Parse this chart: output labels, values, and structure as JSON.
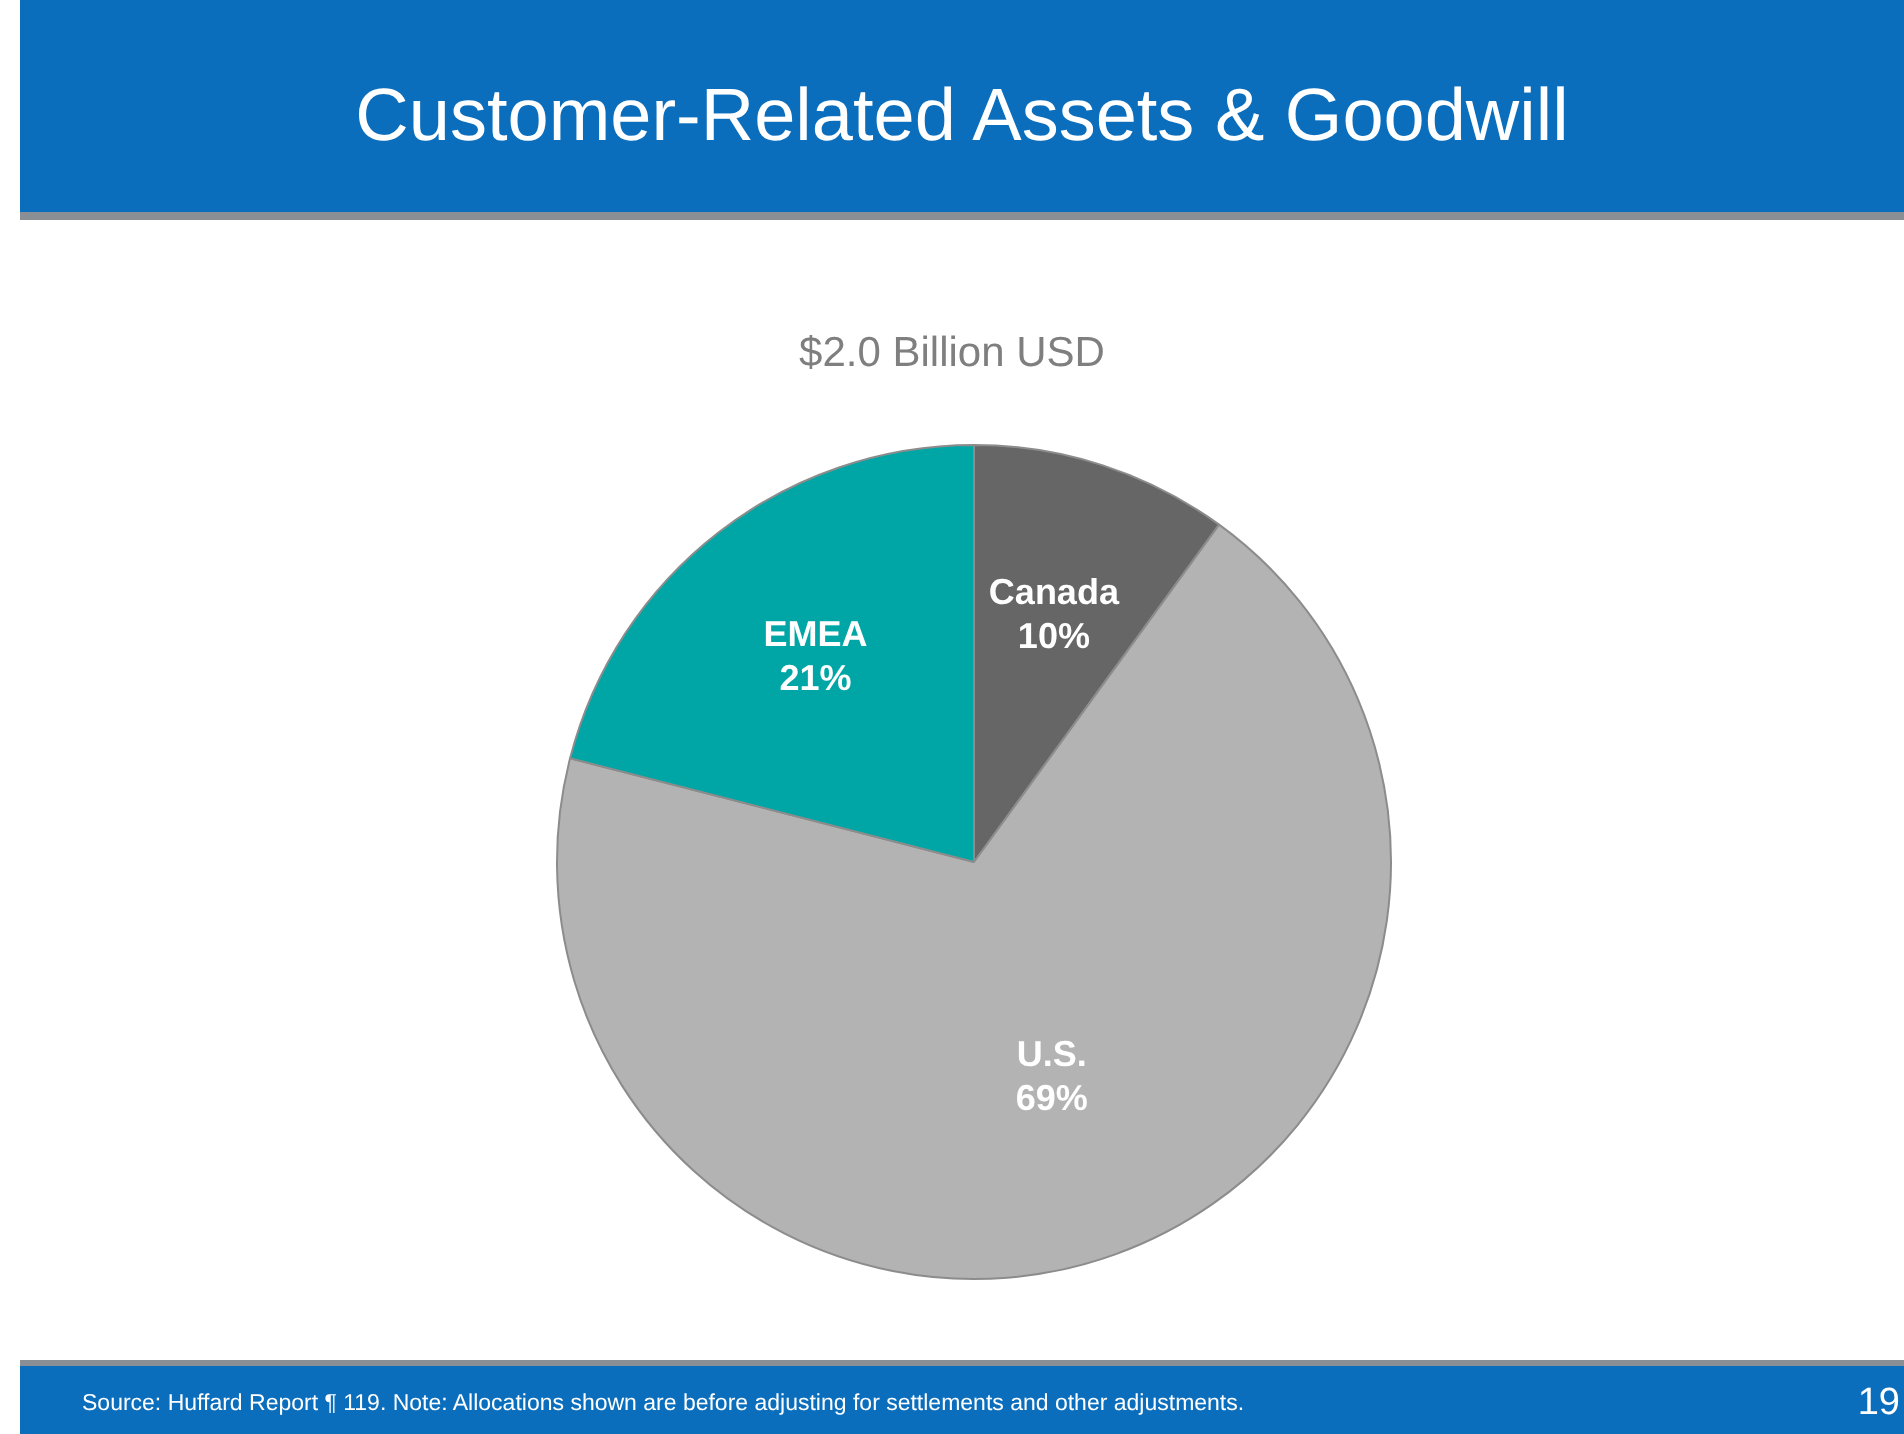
{
  "chart_data": {
    "type": "pie",
    "title": "Customer-Related Assets & Goodwill",
    "subtitle": "$2.0 Billion USD",
    "categories": [
      "Canada",
      "U.S.",
      "EMEA"
    ],
    "values": [
      10,
      69,
      21
    ],
    "colors": [
      "#666666",
      "#b3b3b3",
      "#00a6a6"
    ],
    "value_labels": [
      "10%",
      "69%",
      "21%"
    ],
    "legend": false,
    "annotations": [
      "Source: Huffard Report ¶ 119.  Note: Allocations shown are before adjusting for settlements and other adjustments.",
      "19"
    ]
  }
}
